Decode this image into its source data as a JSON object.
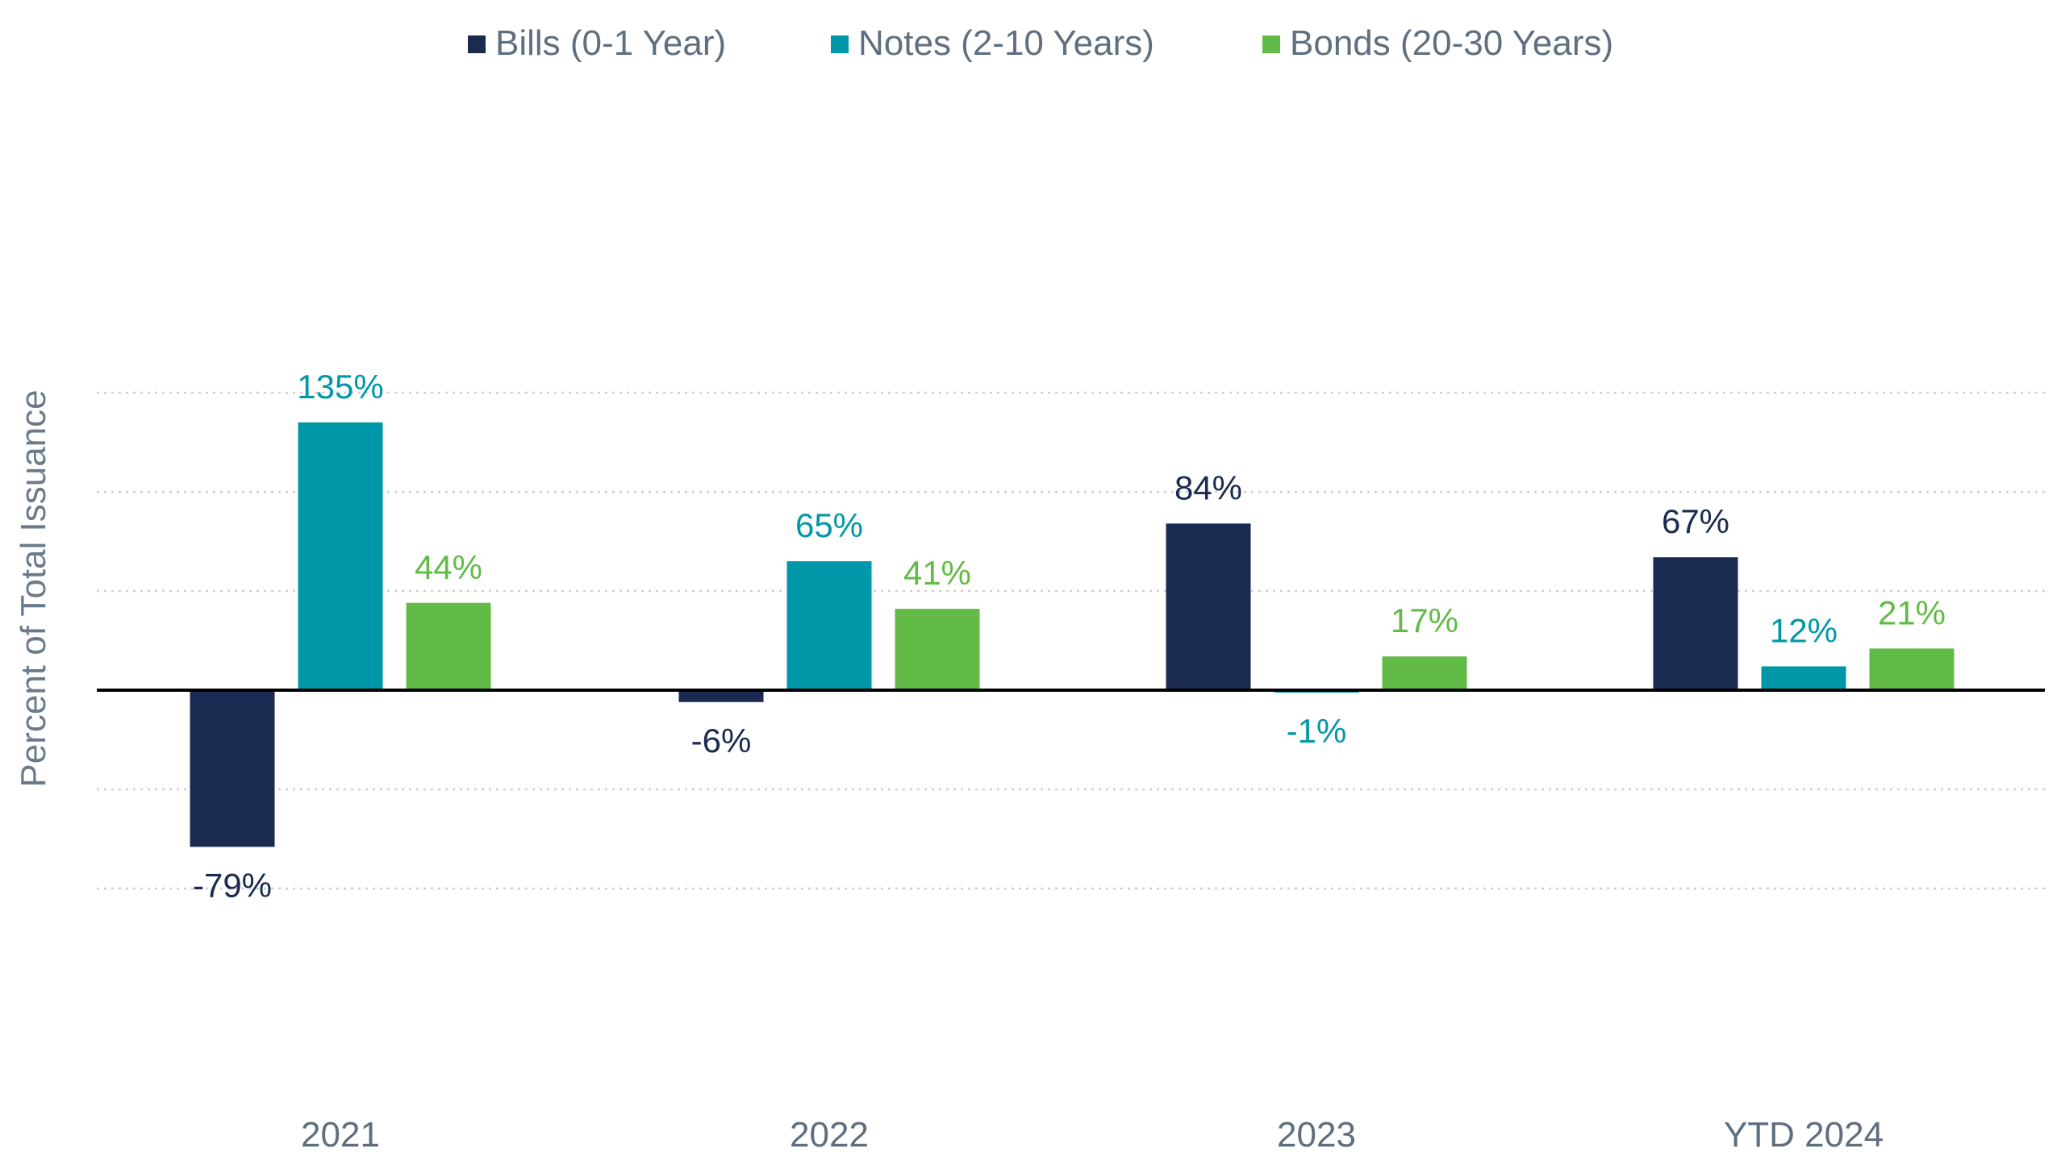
{
  "chart_data": {
    "type": "bar",
    "title": "",
    "xlabel": "",
    "ylabel": "Percent of Total Issuance",
    "ylim": [
      -100,
      150
    ],
    "grid": true,
    "legend_position": "top-center",
    "categories": [
      "2021",
      "2022",
      "2023",
      "YTD 2024"
    ],
    "series": [
      {
        "name": "Bills (0-1 Year)",
        "color": "#1b2a50",
        "values": [
          -79,
          -6,
          84,
          67
        ],
        "labels": [
          "-79%",
          "-6%",
          "84%",
          "67%"
        ]
      },
      {
        "name": "Notes (2-10 Years)",
        "color": "#0098a8",
        "values": [
          135,
          65,
          -1,
          12
        ],
        "labels": [
          "135%",
          "65%",
          "-1%",
          "12%"
        ]
      },
      {
        "name": "Bonds (20-30 Years)",
        "color": "#62bb46",
        "values": [
          44,
          41,
          17,
          21
        ],
        "labels": [
          "44%",
          "41%",
          "17%",
          "21%"
        ]
      }
    ],
    "gridlines": [
      150,
      100,
      50,
      -50,
      -100
    ]
  }
}
